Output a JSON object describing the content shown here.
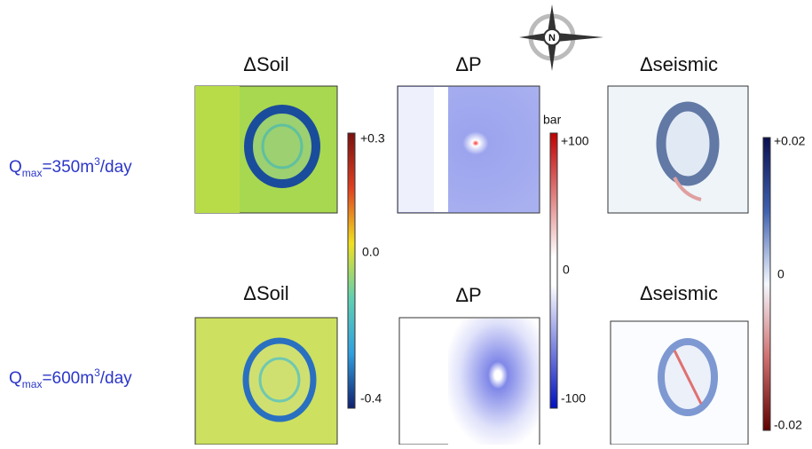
{
  "panel_titles": {
    "soil": "ΔSoil",
    "pressure": "ΔP",
    "seismic": "Δseismic"
  },
  "compass": "N",
  "rows": [
    {
      "q": "Q",
      "sub": "max",
      "text": "=350m",
      "sup": "3",
      "unit": "/day"
    },
    {
      "q": "Q",
      "sub": "max",
      "text": "=600m",
      "sup": "3",
      "unit": "/day"
    }
  ],
  "colorbars": {
    "soil": {
      "top": "+0.3",
      "mid": "0.0",
      "bottom": "-0.4"
    },
    "pressure": {
      "unit": "bar",
      "top": "+100",
      "mid": "0",
      "bottom": "-100"
    },
    "seismic": {
      "top": "+0.02",
      "mid": "0",
      "bottom": "-0.02"
    }
  }
}
